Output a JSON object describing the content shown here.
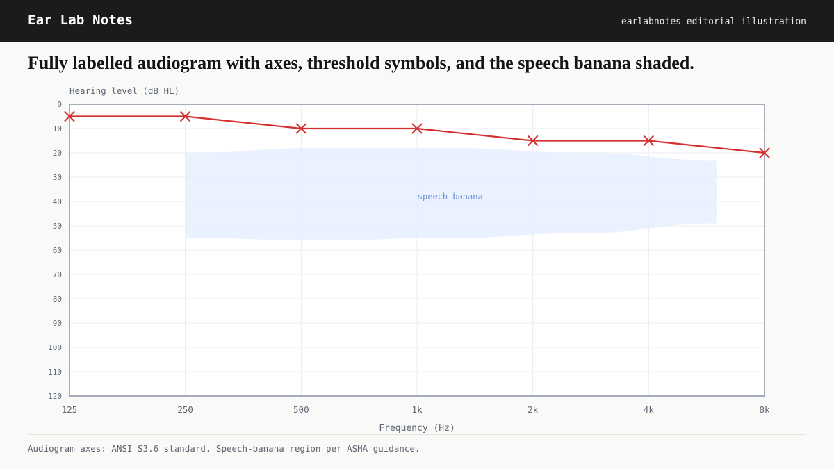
{
  "header": {
    "brand": "Ear Lab Notes",
    "tagline": "earlabnotes editorial illustration"
  },
  "headline": "Fully labelled audiogram with axes, threshold symbols, and the speech banana shaded.",
  "footnote": "Audiogram axes: ANSI S3.6 standard. Speech-banana region per ASHA guidance.",
  "colors": {
    "threshold": "#d32f2f",
    "banana_fill": "#e6efff",
    "banana_text": "#6b8fd1",
    "axis": "#8a93a3",
    "grid": "#e8ecf2",
    "tick_text": "#5f6878"
  },
  "chart_data": {
    "type": "line",
    "xlabel": "Frequency (Hz)",
    "ylabel": "Hearing level (dB HL)",
    "categories": [
      "125",
      "250",
      "500",
      "1k",
      "2k",
      "4k",
      "8k"
    ],
    "y_ticks": [
      0,
      10,
      20,
      30,
      40,
      50,
      60,
      70,
      80,
      90,
      100,
      110,
      120
    ],
    "ylim": [
      0,
      120
    ],
    "y_inverted": true,
    "x_scale": "log2",
    "grid": true,
    "series": [
      {
        "marker": "x-icon",
        "values": [
          5,
          5,
          10,
          10,
          15,
          15,
          20
        ]
      }
    ],
    "annotations": [
      {
        "label": "speech banana",
        "region": {
          "freq_from": "250",
          "freq_to": "6k",
          "upper_db": [
            20,
            18,
            18,
            20,
            23
          ],
          "lower_db": [
            55,
            56,
            55,
            53,
            49
          ]
        }
      }
    ]
  }
}
